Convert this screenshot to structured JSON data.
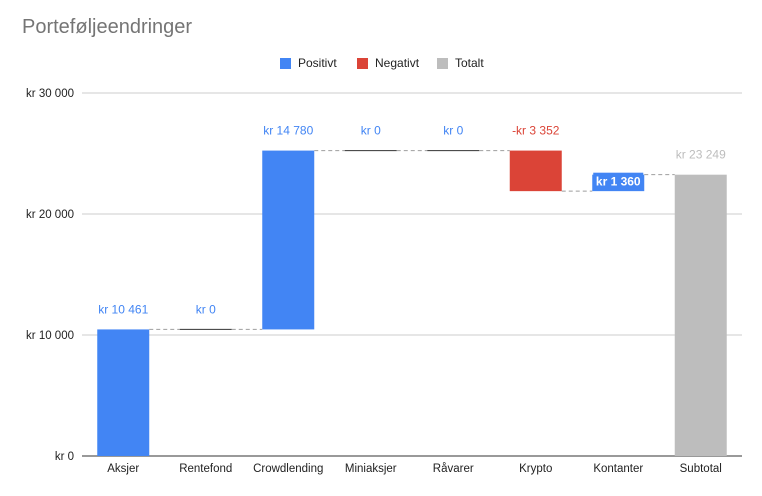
{
  "title": "Porteføljeendringer",
  "colors": {
    "positive": "#4285f4",
    "negative": "#db4437",
    "total": "#bdbdbd",
    "grid": "#cccccc",
    "connector": "#9e9e9e"
  },
  "legend": [
    {
      "label": "Positivt",
      "color": "#4285f4",
      "icon": "square-swatch"
    },
    {
      "label": "Negativt",
      "color": "#db4437",
      "icon": "square-swatch"
    },
    {
      "label": "Totalt",
      "color": "#bdbdbd",
      "icon": "square-swatch"
    }
  ],
  "chart_data": {
    "type": "bar",
    "subtype": "waterfall",
    "title": "Porteføljeendringer",
    "categories": [
      "Aksjer",
      "Rentefond",
      "Crowdlending",
      "Miniaksjer",
      "Råvarer",
      "Krypto",
      "Kontanter",
      "Subtotal"
    ],
    "values": [
      10461,
      0,
      14780,
      0,
      0,
      -3352,
      1360,
      23249
    ],
    "kinds": [
      "positive",
      "positive",
      "positive",
      "positive",
      "positive",
      "negative",
      "positive",
      "total"
    ],
    "data_labels": [
      "kr 10 461",
      "kr 0",
      "kr 14 780",
      "kr 0",
      "kr 0",
      "-kr 3 352",
      "kr 1 360",
      "kr 23 249"
    ],
    "yticks": [
      0,
      10000,
      20000,
      30000
    ],
    "ytick_labels": [
      "kr 0",
      "kr 10 000",
      "kr 20 000",
      "kr 30 000"
    ],
    "ylim": [
      0,
      30000
    ],
    "grid": true,
    "legend_position": "top"
  }
}
